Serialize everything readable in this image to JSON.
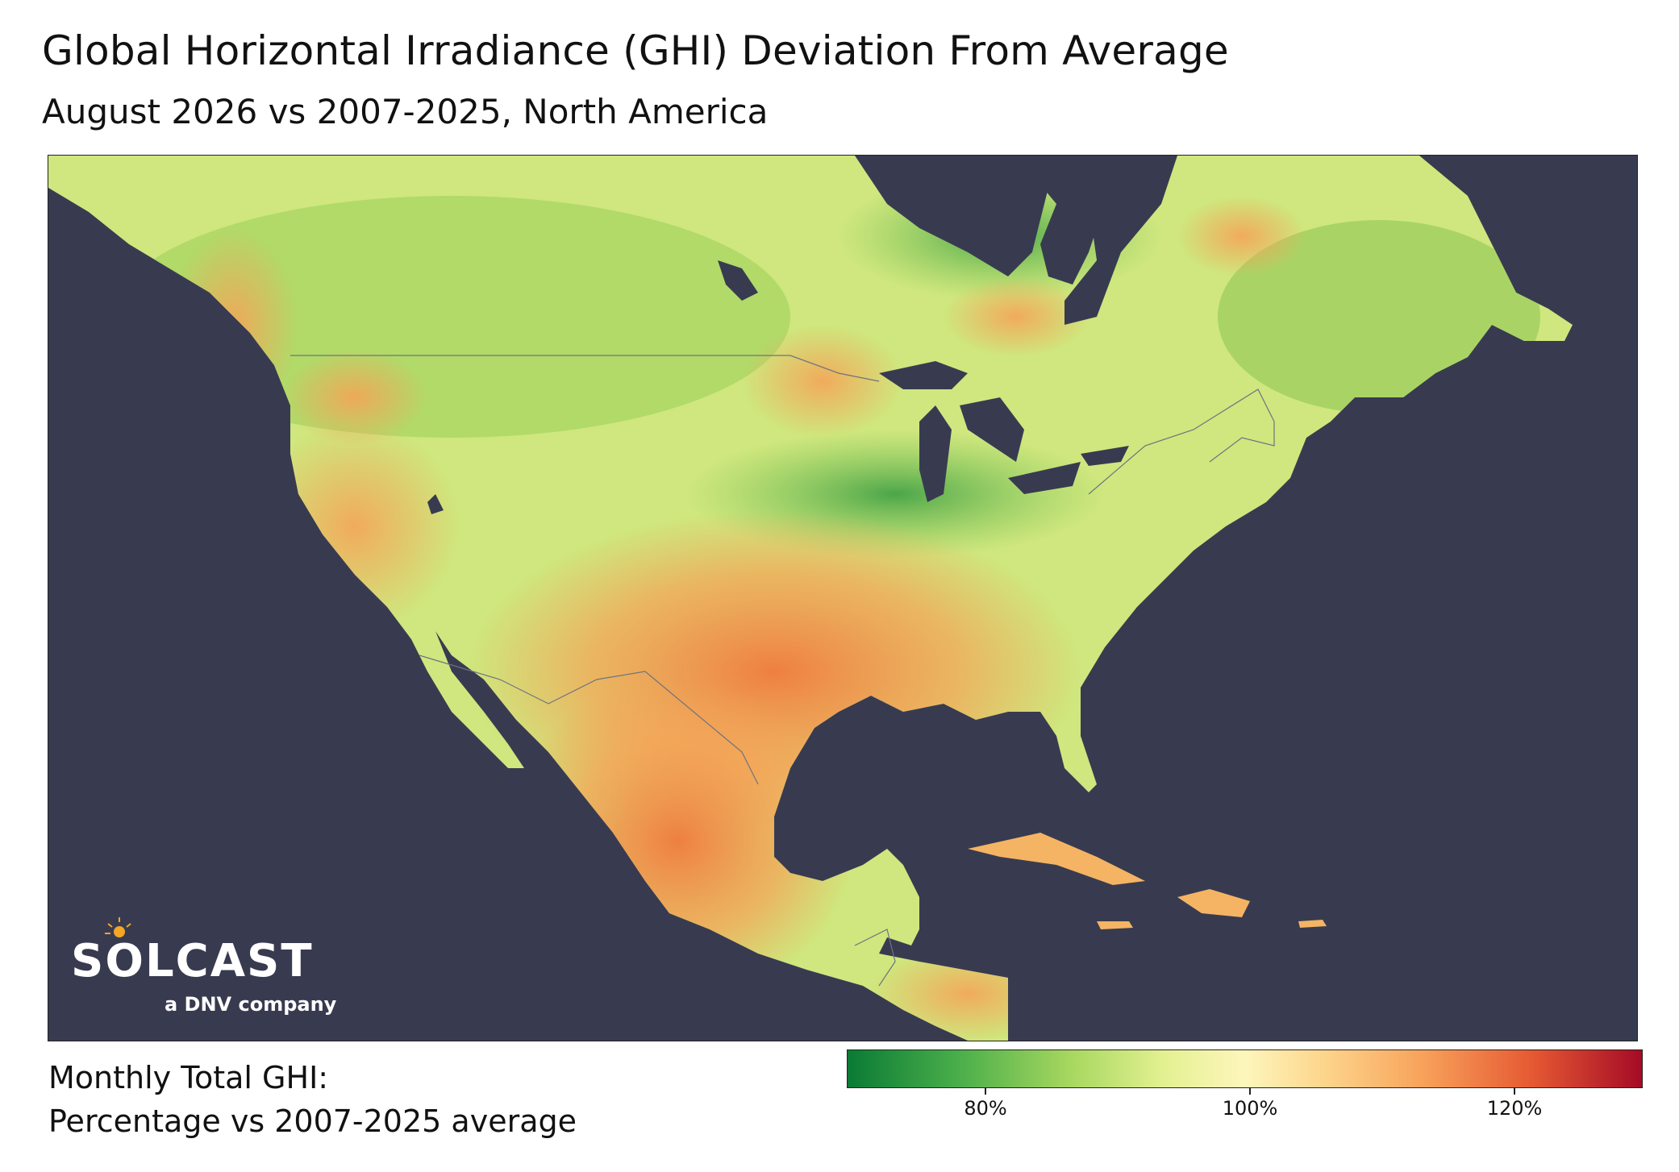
{
  "title": "Global Horizontal Irradiance (GHI) Deviation From Average",
  "subtitle": "August 2026 vs 2007-2025, North America",
  "brand": {
    "name": "SOLCAST",
    "tagline": "a DNV company"
  },
  "legend": {
    "title_line1": "Monthly Total GHI:",
    "title_line2": "Percentage vs 2007-2025 average",
    "ticks": [
      "80%",
      "100%",
      "120%"
    ],
    "range": [
      70,
      130
    ],
    "colors": [
      "#0a7a35",
      "#a7d75f",
      "#fdf6bc",
      "#f8a45c",
      "#a50b26"
    ]
  },
  "ocean_color": "#383b50"
}
